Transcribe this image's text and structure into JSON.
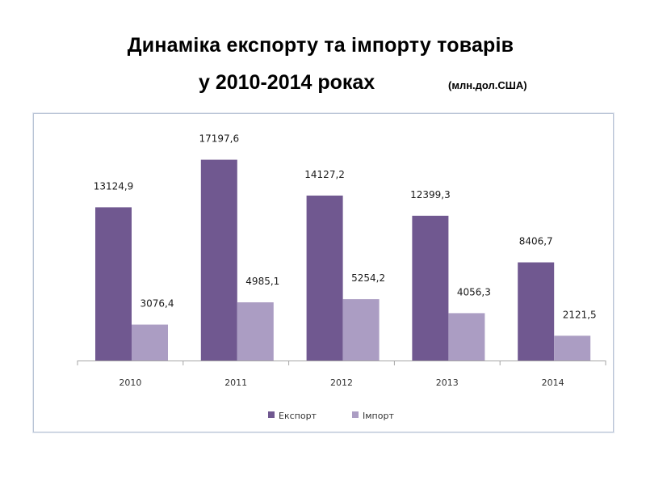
{
  "header": {
    "title_line1": "Динаміка експорту та імпорту товарів",
    "title_line2": "у 2010-2014 роках",
    "unit": "(млн.дол.США)"
  },
  "chart_data": {
    "type": "bar",
    "categories": [
      "2010",
      "2011",
      "2012",
      "2013",
      "2014"
    ],
    "series": [
      {
        "name": "Експорт",
        "values": [
          13124.9,
          17197.6,
          14127.2,
          12399.3,
          8406.7
        ],
        "labels": [
          "13124,9",
          "17197,6",
          "14127,2",
          "12399,3",
          "8406,7"
        ],
        "color": "#705890"
      },
      {
        "name": "Імпорт",
        "values": [
          3076.4,
          4985.1,
          5254.2,
          4056.3,
          2121.5
        ],
        "labels": [
          "3076,4",
          "4985,1",
          "5254,2",
          "4056,3",
          "2121,5"
        ],
        "color": "#ab9dc3"
      }
    ],
    "ylim": [
      0,
      18000
    ],
    "grid": false,
    "legend_position": "bottom",
    "title": "",
    "xlabel": "",
    "ylabel": ""
  },
  "colors": {
    "axis": "#a6a6a6",
    "frame": "#b9c4d6",
    "text": "#1a1a1a"
  }
}
